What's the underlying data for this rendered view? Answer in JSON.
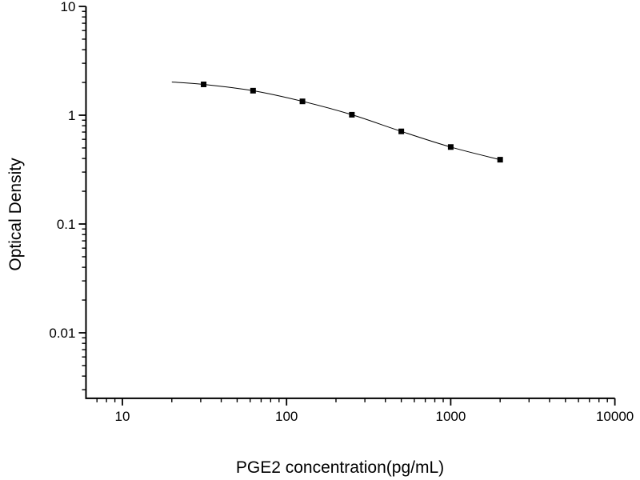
{
  "figure": {
    "background": "#ffffff",
    "axis_color": "#000000"
  },
  "chart_data": {
    "type": "scatter",
    "title": "",
    "xlabel": "PGE2 concentration(pg/mL)",
    "ylabel": "Optical Density",
    "x_scale": "log",
    "y_scale": "log",
    "xlim": [
      6,
      10000
    ],
    "ylim": [
      0.0025,
      10
    ],
    "x_ticks": [
      10,
      100,
      1000,
      10000
    ],
    "x_tick_labels": [
      "10",
      "100",
      "1000",
      "10000"
    ],
    "y_ticks": [
      10,
      1,
      0.1,
      0.01
    ],
    "y_tick_labels": [
      "10",
      "1",
      "0.1",
      "0.01"
    ],
    "grid": false,
    "legend": null,
    "marker": "filled-square",
    "marker_color": "#000000",
    "line_color": "#000000",
    "line_start": {
      "x": 20,
      "y": 2.02
    },
    "series": [
      {
        "x": [
          31.25,
          62.5,
          125,
          250,
          500,
          1000,
          2000
        ],
        "y": [
          1.92,
          1.68,
          1.34,
          1.01,
          0.71,
          0.51,
          0.39
        ]
      }
    ]
  }
}
